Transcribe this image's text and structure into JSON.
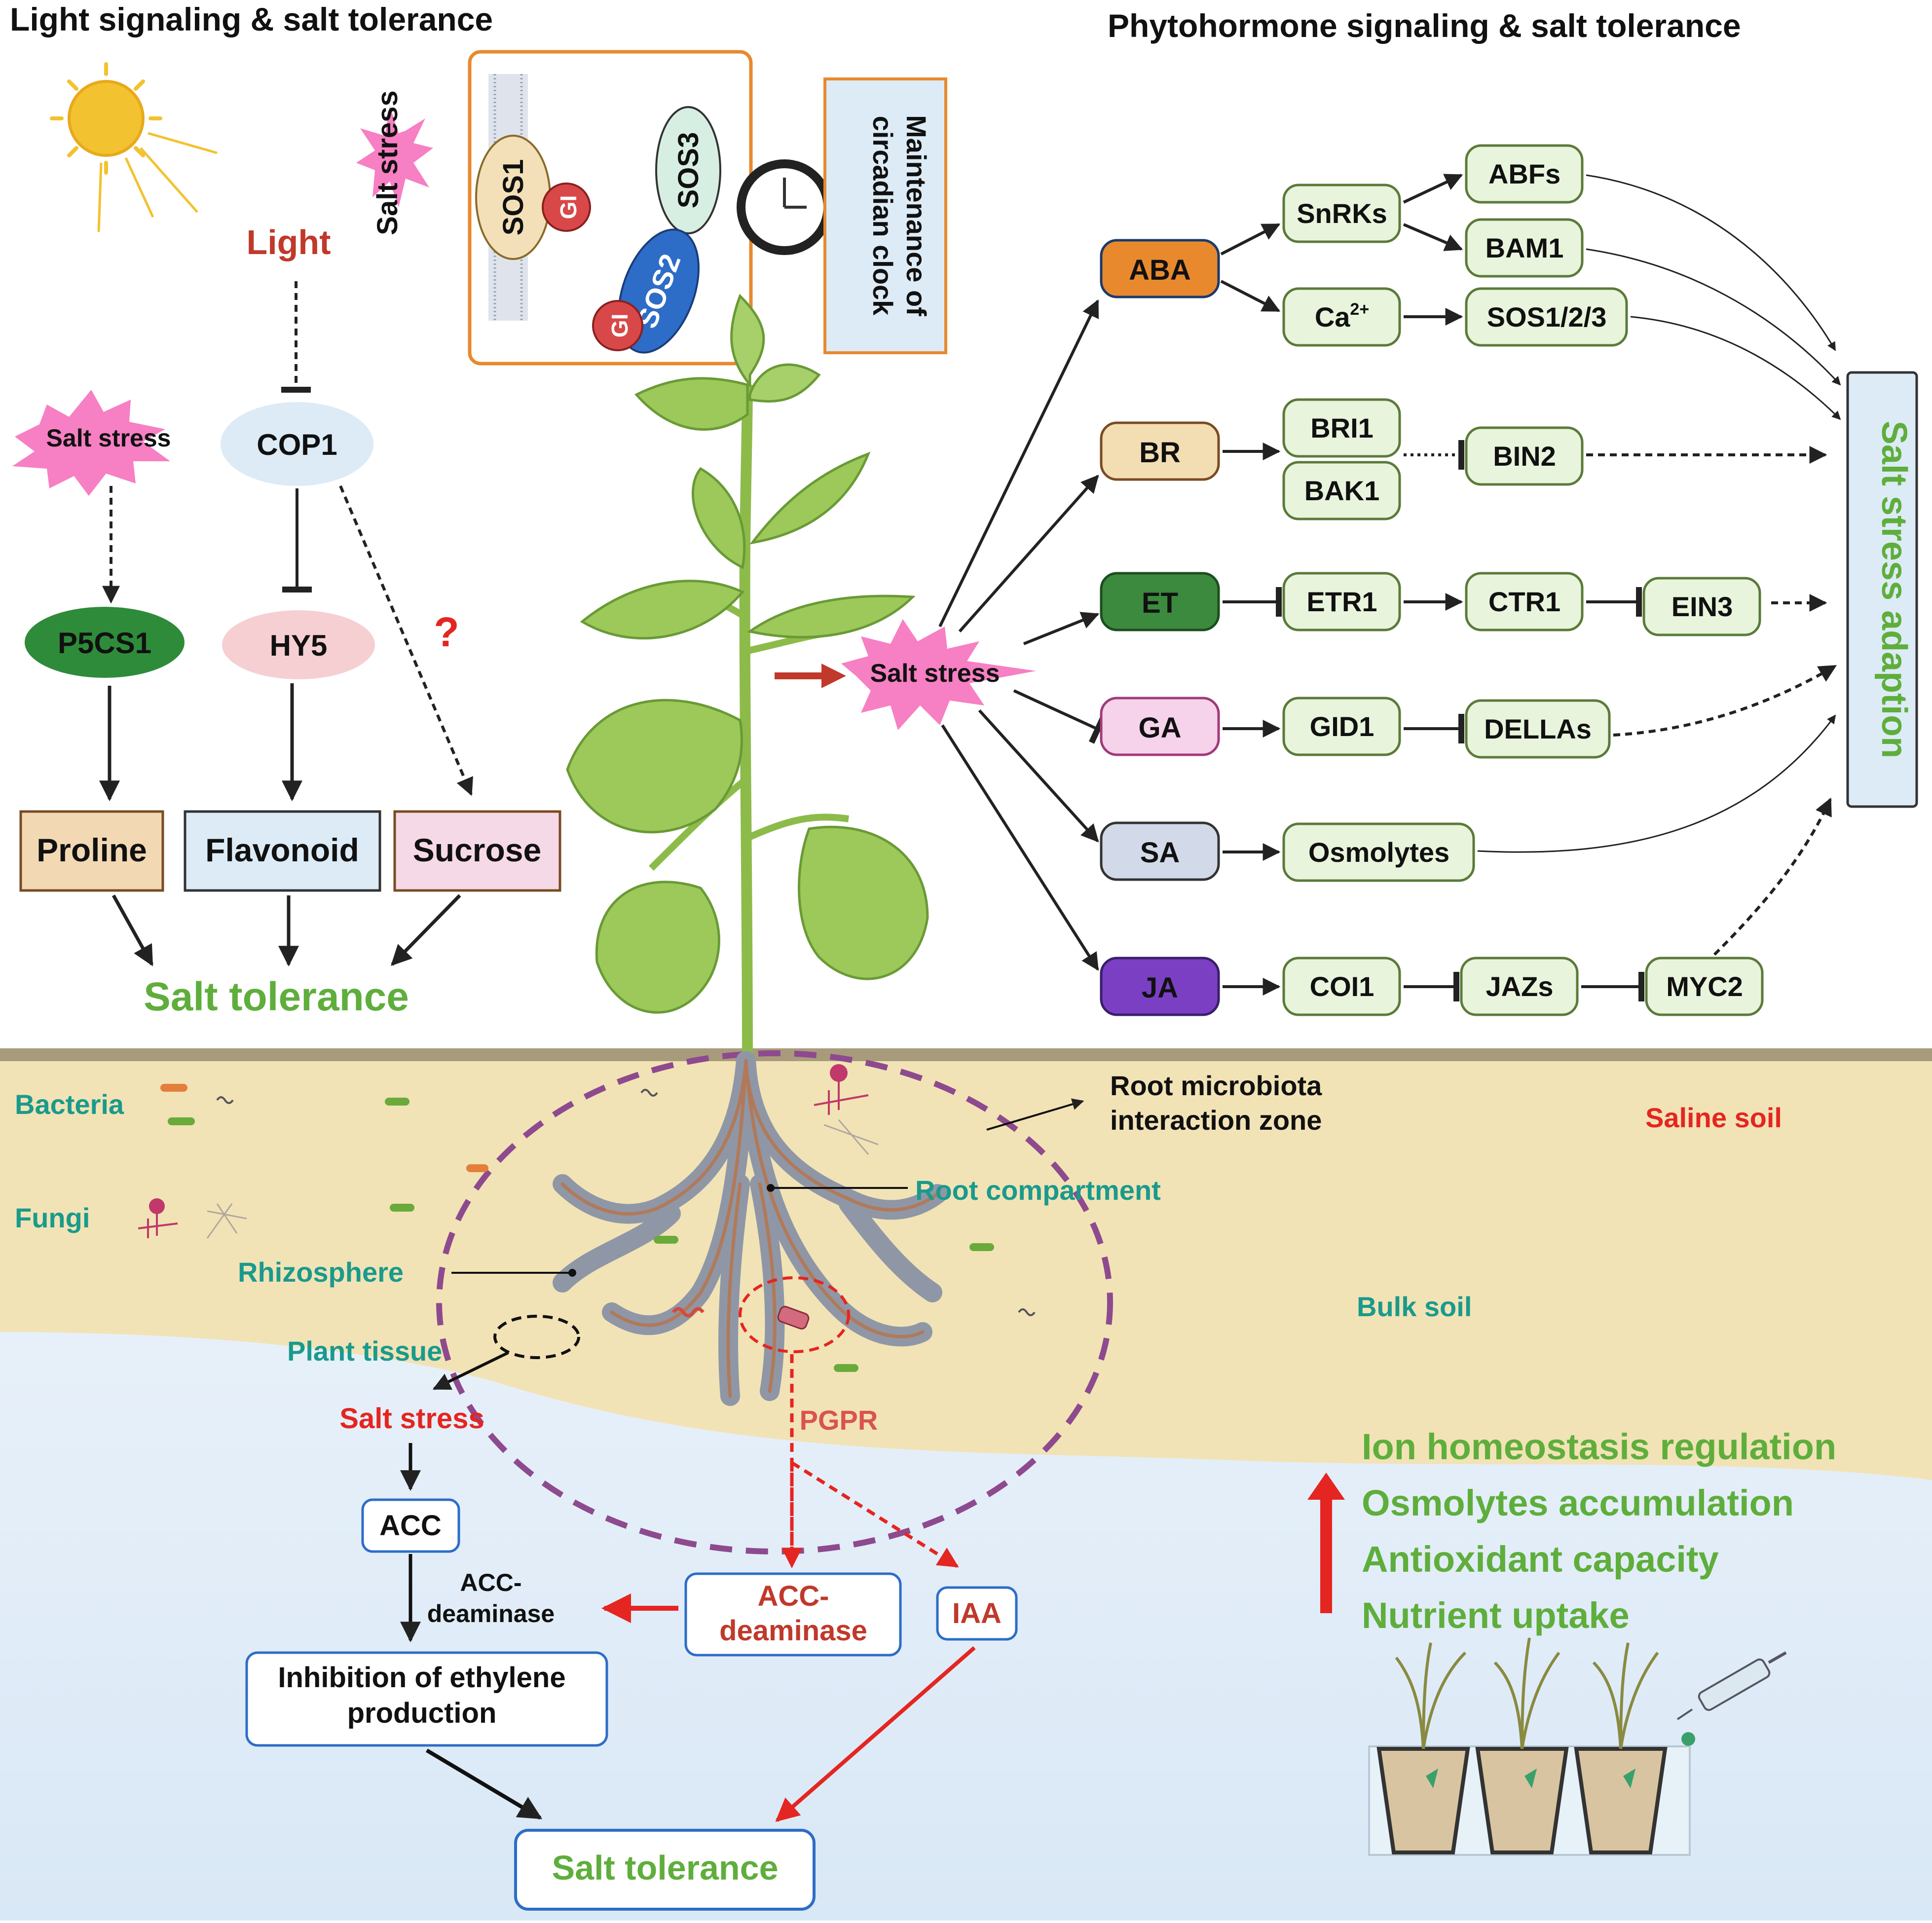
{
  "colors": {
    "green_text": "#5fae3c",
    "teal_text": "#1a9a8c",
    "red_text": "#e52521",
    "dark_red_text": "#c0392b",
    "node_fill": "#e8f4dc",
    "node_stroke": "#5b7a3a",
    "soil": "#f1e3b6",
    "soil_line": "#a89b7c",
    "sky": "#e4eef9",
    "pink": "#f77fc3"
  },
  "light": {
    "title": "Light signaling & salt tolerance",
    "light_label": "Light",
    "salt_stress_top": "Salt stress",
    "salt_stress_left": "Salt stress",
    "cop1": "COP1",
    "p5cs1": "P5CS1",
    "hy5": "HY5",
    "question": "?",
    "proline": "Proline",
    "flavonoid": "Flavonoid",
    "sucrose": "Sucrose",
    "salt_tolerance": "Salt tolerance",
    "sos1": "SOS1",
    "sos2": "SOS2",
    "sos3": "SOS3",
    "gi1": "GI",
    "gi2": "GI",
    "circadian_line1": "Maintenance of",
    "circadian_line2": "circadian clock"
  },
  "phyto": {
    "title": "Phytohormone signaling & salt tolerance",
    "salt_stress": "Salt stress",
    "adaption": "Salt stress adaption",
    "hormones": [
      "ABA",
      "BR",
      "ET",
      "GA",
      "SA",
      "JA"
    ],
    "snrks": "SnRKs",
    "ca": "Ca",
    "ca_sup": "2+",
    "abfs": "ABFs",
    "bam1": "BAM1",
    "sos123": "SOS1/2/3",
    "bri1": "BRI1",
    "bak1": "BAK1",
    "bin2": "BIN2",
    "etr1": "ETR1",
    "ctr1": "CTR1",
    "ein3": "EIN3",
    "gid1": "GID1",
    "dellas": "DELLAs",
    "osmolytes": "Osmolytes",
    "coi1": "COI1",
    "jazs": "JAZs",
    "myc2": "MYC2"
  },
  "soil": {
    "bacteria": "Bacteria",
    "fungi": "Fungi",
    "rmiz_line1": "Root microbiota",
    "rmiz_line2": "interaction zone",
    "saline_soil": "Saline soil",
    "root_compartment": "Root compartment",
    "rhizosphere": "Rhizosphere",
    "bulk_soil": "Bulk soil",
    "plant_tissue": "Plant tissue",
    "salt_stress": "Salt stress",
    "pgpr": "PGPR",
    "acc": "ACC",
    "acc_deaminase_small_1": "ACC-",
    "acc_deaminase_small_2": "deaminase",
    "acc_deaminase_box_1": "ACC-",
    "acc_deaminase_box_2": "deaminase",
    "iaa": "IAA",
    "inhibition_1": "Inhibition of ethylene",
    "inhibition_2": "production",
    "salt_tolerance": "Salt tolerance",
    "outcomes": [
      "Ion homeostasis regulation",
      "Osmolytes accumulation",
      "Antioxidant capacity",
      "Nutrient uptake"
    ]
  }
}
